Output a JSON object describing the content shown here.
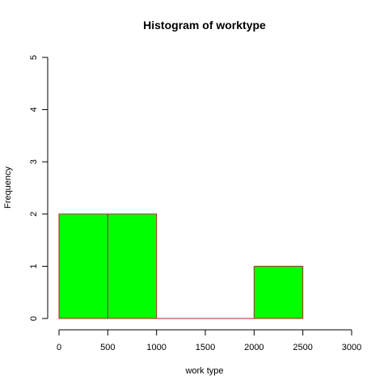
{
  "chart_data": {
    "type": "bar",
    "title": "Histogram of worktype",
    "xlabel": "work type",
    "ylabel": "Frequency",
    "bins": [
      {
        "start": 0,
        "end": 500,
        "count": 2
      },
      {
        "start": 500,
        "end": 1000,
        "count": 2
      },
      {
        "start": 1000,
        "end": 1500,
        "count": 0
      },
      {
        "start": 1500,
        "end": 2000,
        "count": 0
      },
      {
        "start": 2000,
        "end": 2500,
        "count": 1
      }
    ],
    "xlim": [
      0,
      3000
    ],
    "ylim": [
      0,
      5
    ],
    "x_ticks": [
      "0",
      "500",
      "1000",
      "1500",
      "2000",
      "2500",
      "3000"
    ],
    "y_ticks": [
      "0",
      "1",
      "2",
      "3",
      "4",
      "5"
    ],
    "grid": false,
    "colors": {
      "fill": "#00ff00",
      "border": "#a52a2a"
    }
  }
}
